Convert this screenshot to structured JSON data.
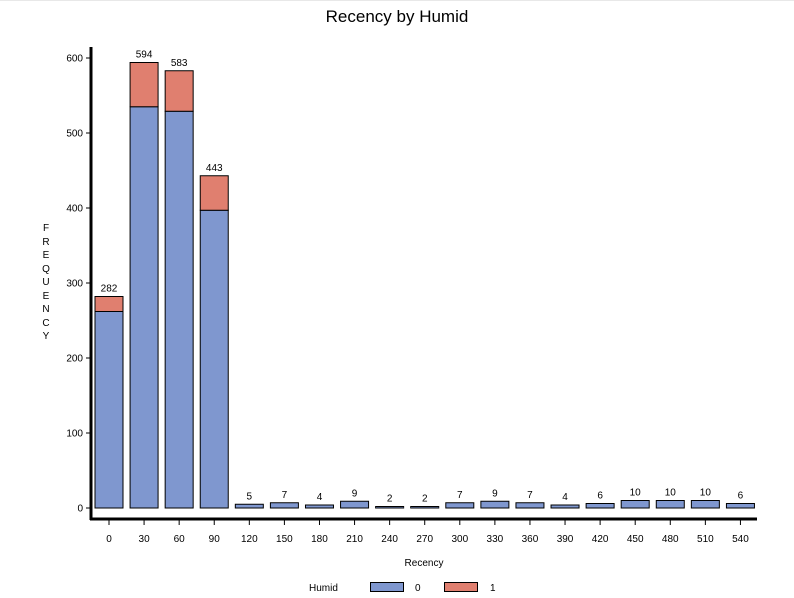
{
  "chart_data": {
    "type": "bar",
    "stacked": true,
    "title": "Recency by Humid",
    "xlabel": "Recency",
    "ylabel": "FREQUENCY",
    "categories": [
      "0",
      "30",
      "60",
      "90",
      "120",
      "150",
      "180",
      "210",
      "240",
      "270",
      "300",
      "330",
      "360",
      "390",
      "420",
      "450",
      "480",
      "510",
      "540"
    ],
    "series": [
      {
        "name": "0",
        "color": "#7f97cf",
        "values": [
          262,
          535,
          529,
          397,
          5,
          7,
          4,
          9,
          2,
          2,
          7,
          9,
          7,
          4,
          6,
          10,
          10,
          10,
          6
        ]
      },
      {
        "name": "1",
        "color": "#e07f6f",
        "values": [
          20,
          59,
          54,
          46,
          0,
          0,
          0,
          0,
          0,
          0,
          0,
          0,
          0,
          0,
          0,
          0,
          0,
          0,
          0
        ]
      }
    ],
    "totals": [
      "282",
      "594",
      "583",
      "443",
      "5",
      "7",
      "4",
      "9",
      "2",
      "2",
      "7",
      "9",
      "7",
      "4",
      "6",
      "10",
      "10",
      "10",
      "6"
    ],
    "ylim": [
      0,
      620
    ],
    "yticks": [
      "0",
      "100",
      "200",
      "300",
      "400",
      "500",
      "600"
    ],
    "grid": false,
    "legend_title": "Humid",
    "legend_position": "bottom"
  }
}
